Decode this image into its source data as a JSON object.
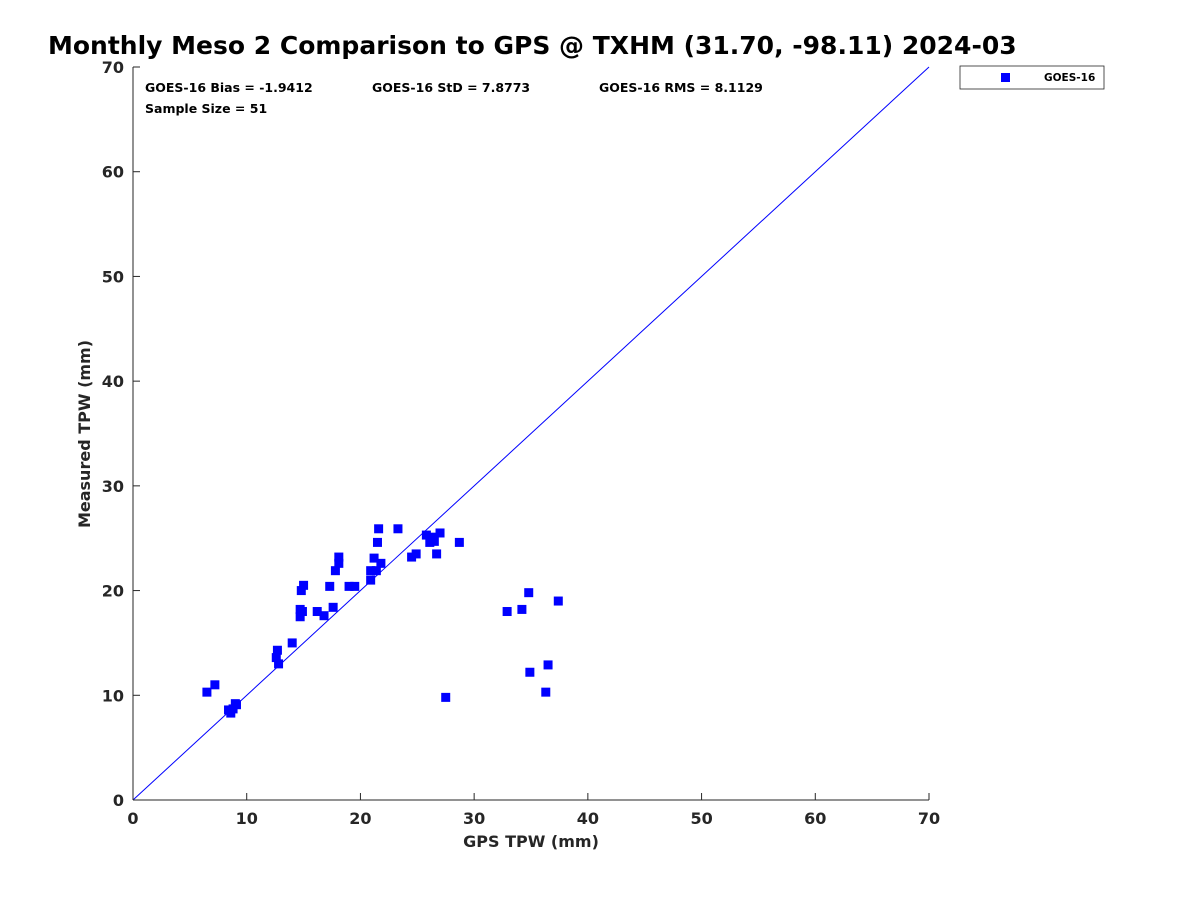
{
  "chart_data": {
    "type": "scatter",
    "title": "Monthly Meso 2 Comparison to GPS @ TXHM (31.70, -98.11) 2024-03",
    "xlabel": "GPS TPW (mm)",
    "ylabel": "Measured TPW (mm)",
    "xlim": [
      0,
      70
    ],
    "ylim": [
      0,
      70
    ],
    "xticks": [
      "0",
      "10",
      "20",
      "30",
      "40",
      "50",
      "60",
      "70"
    ],
    "yticks": [
      "0",
      "10",
      "20",
      "30",
      "40",
      "50",
      "60",
      "70"
    ],
    "grid": false,
    "legend_position": "outside-top-right",
    "reference_line": {
      "x": [
        0,
        70
      ],
      "y": [
        0,
        70
      ],
      "color": "#0000ff"
    },
    "stats": {
      "bias": "GOES-16 Bias = -1.9412",
      "std": "GOES-16 StD = 7.8773",
      "rms": "GOES-16 RMS = 8.1129",
      "sample_size": "Sample Size = 51"
    },
    "series": [
      {
        "name": "GOES-16",
        "color": "#0000ff",
        "marker": "square",
        "points": [
          [
            6.5,
            10.3
          ],
          [
            7.2,
            11.0
          ],
          [
            8.4,
            8.6
          ],
          [
            8.6,
            8.3
          ],
          [
            8.8,
            8.7
          ],
          [
            9.1,
            9.1
          ],
          [
            9.0,
            9.2
          ],
          [
            12.6,
            13.6
          ],
          [
            12.7,
            14.3
          ],
          [
            12.8,
            13.0
          ],
          [
            14.0,
            15.0
          ],
          [
            14.7,
            17.5
          ],
          [
            14.7,
            18.2
          ],
          [
            14.8,
            20.0
          ],
          [
            14.9,
            18.0
          ],
          [
            15.0,
            20.5
          ],
          [
            16.2,
            18.0
          ],
          [
            16.8,
            17.6
          ],
          [
            17.3,
            20.4
          ],
          [
            17.6,
            18.4
          ],
          [
            17.8,
            21.9
          ],
          [
            18.1,
            22.6
          ],
          [
            18.1,
            23.2
          ],
          [
            19.0,
            20.4
          ],
          [
            19.5,
            20.4
          ],
          [
            20.9,
            21.0
          ],
          [
            20.9,
            21.9
          ],
          [
            21.2,
            23.1
          ],
          [
            21.4,
            21.9
          ],
          [
            21.5,
            24.6
          ],
          [
            21.6,
            25.9
          ],
          [
            21.8,
            22.6
          ],
          [
            23.3,
            25.9
          ],
          [
            24.5,
            23.2
          ],
          [
            24.9,
            23.5
          ],
          [
            25.8,
            25.3
          ],
          [
            26.1,
            24.6
          ],
          [
            26.3,
            25.1
          ],
          [
            26.5,
            24.7
          ],
          [
            26.7,
            23.5
          ],
          [
            27.0,
            25.5
          ],
          [
            27.5,
            9.8
          ],
          [
            28.7,
            24.6
          ],
          [
            32.9,
            18.0
          ],
          [
            34.2,
            18.2
          ],
          [
            34.8,
            19.8
          ],
          [
            34.9,
            12.2
          ],
          [
            36.3,
            10.3
          ],
          [
            36.5,
            12.9
          ],
          [
            37.4,
            19.0
          ],
          [
            26.2,
            25.0
          ]
        ]
      }
    ]
  }
}
